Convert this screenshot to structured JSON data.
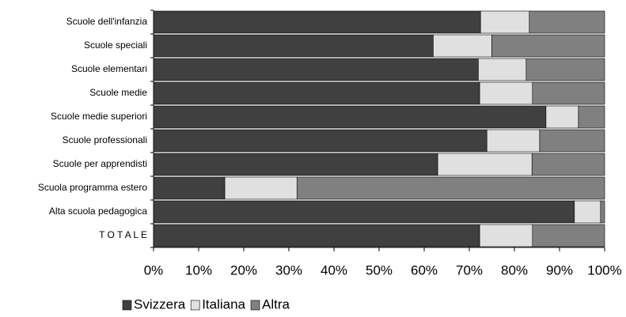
{
  "chart_data": {
    "type": "bar",
    "orientation": "horizontal",
    "stacked": true,
    "categories": [
      "Scuole dell'infanzia",
      "Scuole speciali",
      "Scuole elementari",
      "Scuole medie",
      "Scuole medie superiori",
      "Scuole professionali",
      "Scuole per apprendisti",
      "Scuola programma estero",
      "Alta scuola pedagogica",
      "T O T A L E"
    ],
    "series": [
      {
        "name": "Svizzera",
        "color": "#404040",
        "values": [
          72.5,
          62,
          72,
          72.3,
          87,
          73.9,
          63,
          15.8,
          93.3,
          72.3
        ]
      },
      {
        "name": "Italiana",
        "color": "#e0e0e0",
        "values": [
          10.8,
          13,
          10.6,
          11.7,
          7.2,
          11.7,
          20.9,
          16,
          5.8,
          11.7
        ]
      },
      {
        "name": "Altra",
        "color": "#808080",
        "values": [
          16.7,
          25,
          17.4,
          16,
          5.8,
          14.4,
          16.1,
          68.2,
          0.9,
          16
        ]
      }
    ],
    "xlim": [
      0,
      100
    ],
    "xticks": [
      {
        "value": 0,
        "label": "0%"
      },
      {
        "value": 10,
        "label": "10%"
      },
      {
        "value": 20,
        "label": "20%"
      },
      {
        "value": 30,
        "label": "30%"
      },
      {
        "value": 40,
        "label": "40%"
      },
      {
        "value": 50,
        "label": "50%"
      },
      {
        "value": 60,
        "label": "60%"
      },
      {
        "value": 70,
        "label": "70%"
      },
      {
        "value": 80,
        "label": "80%"
      },
      {
        "value": 90,
        "label": "90%"
      },
      {
        "value": 100,
        "label": "100%"
      }
    ],
    "legend": "bottom"
  }
}
